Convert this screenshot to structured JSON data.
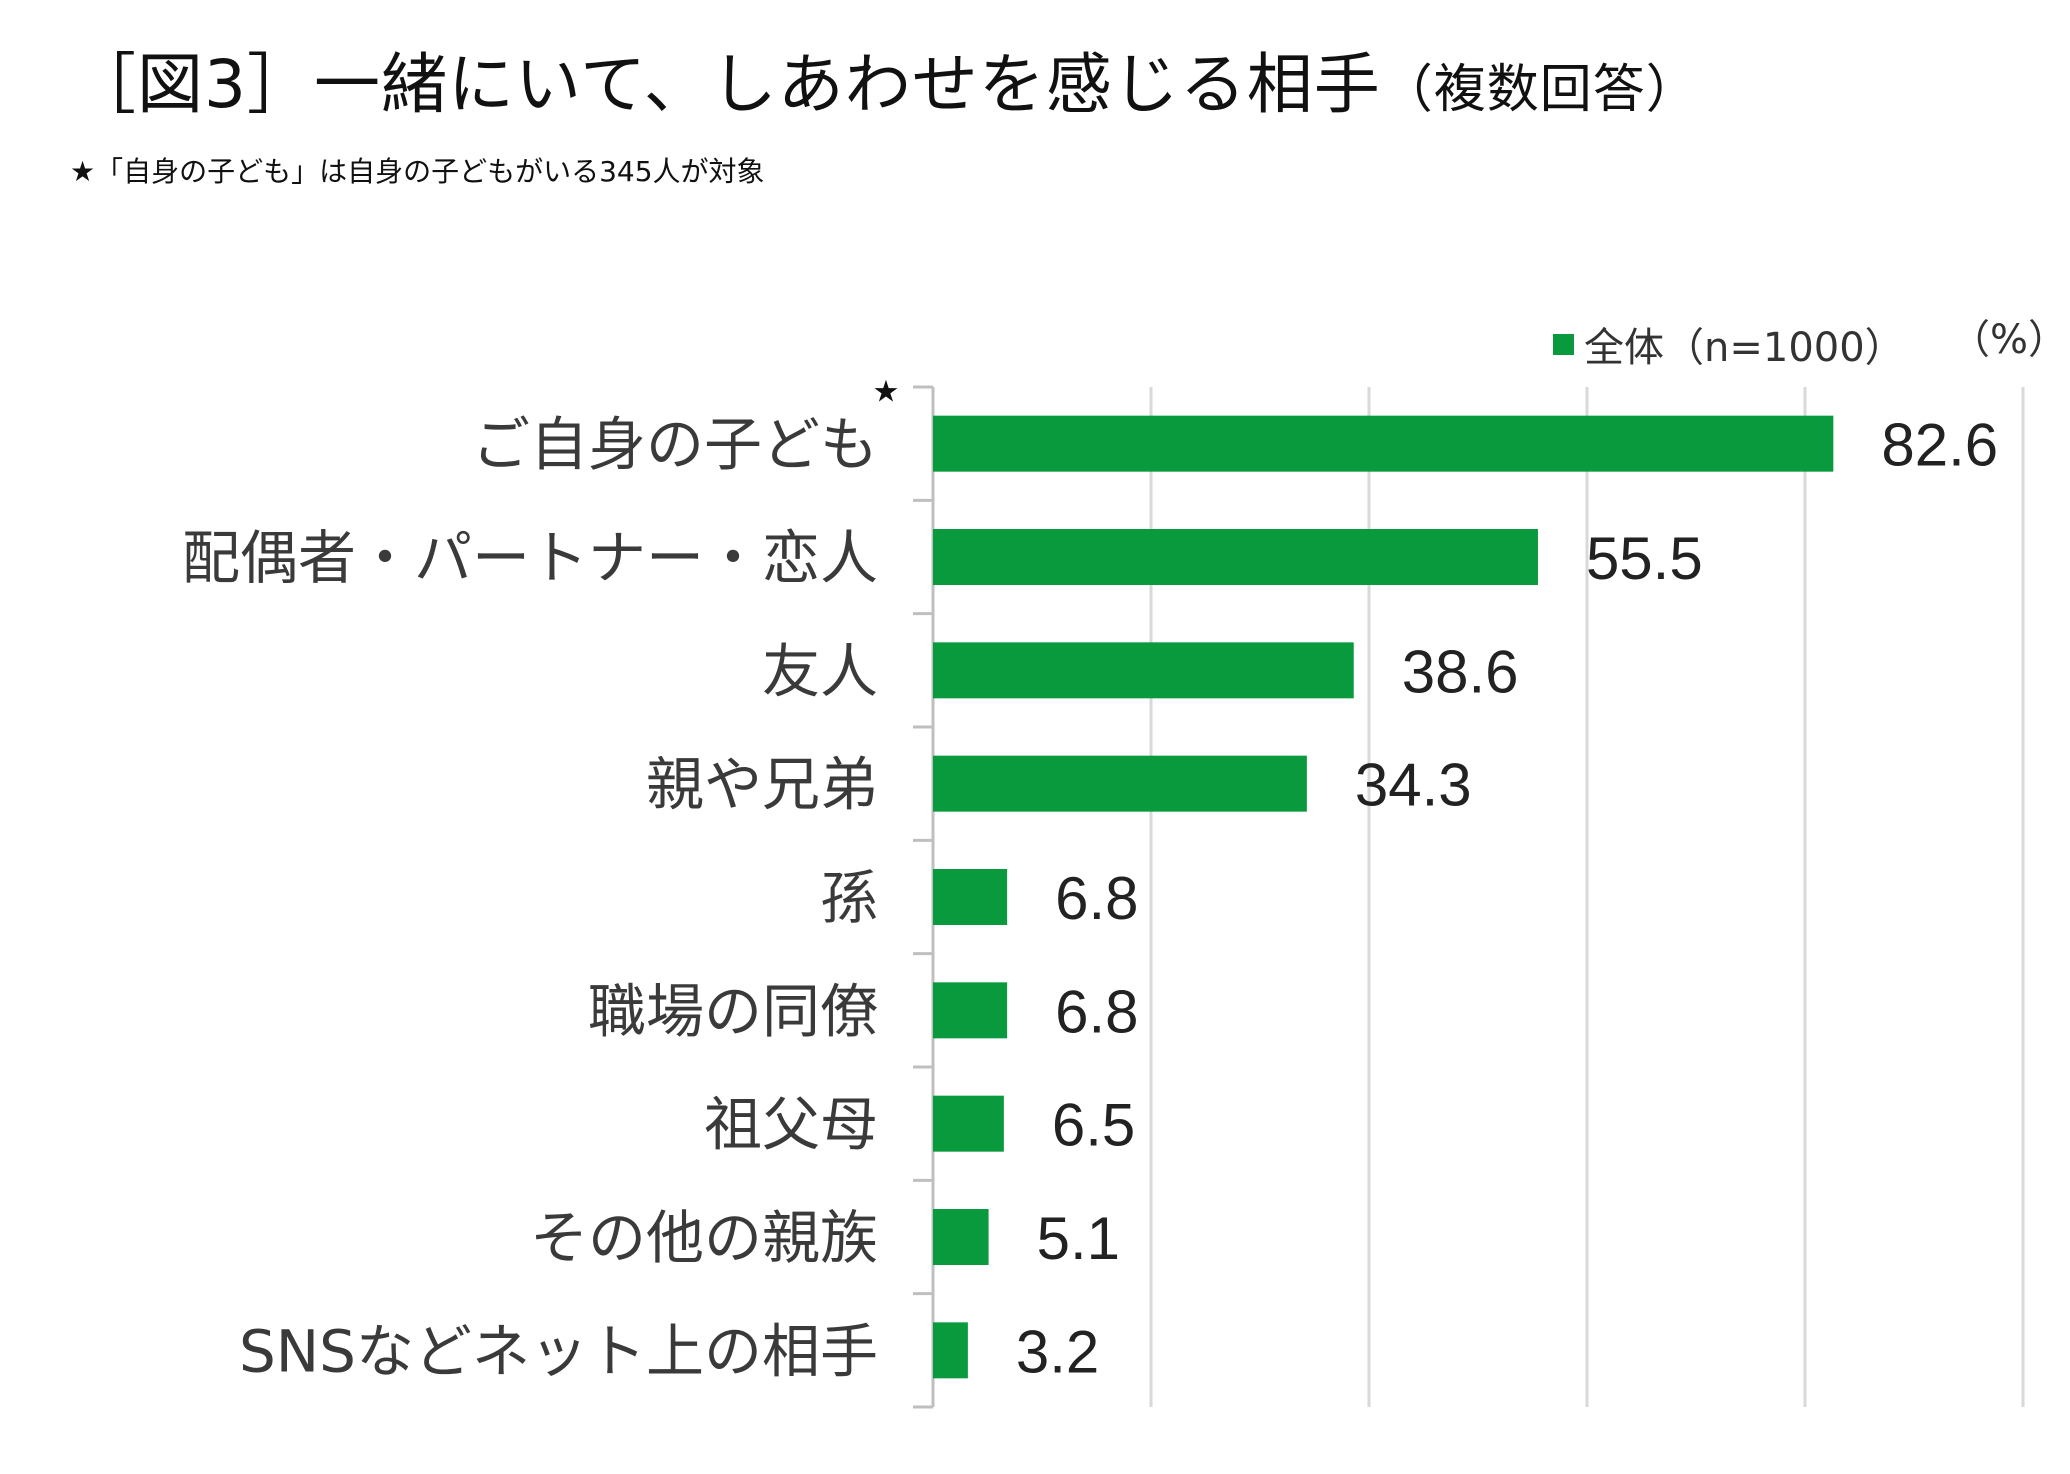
{
  "title": {
    "main": "［図3］一緒にいて、しあわせを感じる相手",
    "suffix": "（複数回答）"
  },
  "note": "★「自身の子ども」は自身の子どもがいる345人が対象",
  "legend": {
    "label": "全体（n=1000）"
  },
  "unit_label": "（%）",
  "colors": {
    "bar": "#0a9a3e",
    "grid": "#d9d9d9",
    "axis": "#bfbfbf"
  },
  "chart_data": {
    "type": "bar",
    "orientation": "horizontal",
    "title": "［図3］一緒にいて、しあわせを感じる相手（複数回答）",
    "unit": "%",
    "categories": [
      "ご自身の子ども",
      "配偶者・パートナー・恋人",
      "友人",
      "親や兄弟",
      "孫",
      "職場の同僚",
      "祖父母",
      "その他の親族",
      "SNSなどネット上の相手"
    ],
    "category_marks": [
      "★",
      "",
      "",
      "",
      "",
      "",
      "",
      "",
      ""
    ],
    "series": [
      {
        "name": "全体（n=1000）",
        "values": [
          82.6,
          55.5,
          38.6,
          34.3,
          6.8,
          6.8,
          6.5,
          5.1,
          3.2
        ]
      }
    ],
    "value_labels": [
      "82.6",
      "55.5",
      "38.6",
      "34.3",
      "6.8",
      "6.8",
      "6.5",
      "5.1",
      "3.2"
    ],
    "xlim": [
      0,
      100
    ],
    "grid_step": 20,
    "grid": true,
    "legend_position": "top-right"
  }
}
